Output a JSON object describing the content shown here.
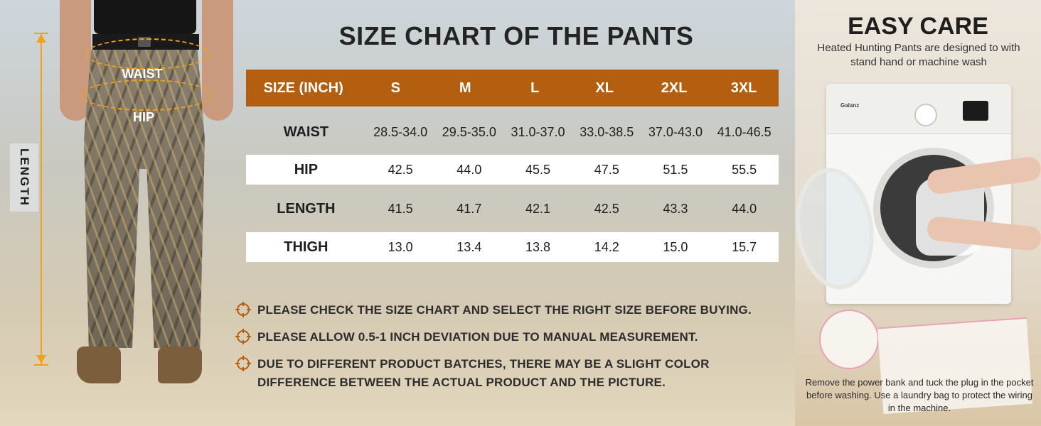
{
  "model": {
    "waist_label": "WAIST",
    "hip_label": "HIP",
    "length_label": "LENGTH"
  },
  "chart_title": "SIZE CHART OF THE PANTS",
  "table": {
    "header": [
      "SIZE (INCH)",
      "S",
      "M",
      "L",
      "XL",
      "2XL",
      "3XL"
    ],
    "rows": [
      {
        "label": "WAIST",
        "values": [
          "28.5-34.0",
          "29.5-35.0",
          "31.0-37.0",
          "33.0-38.5",
          "37.0-43.0",
          "41.0-46.5"
        ]
      },
      {
        "label": "HIP",
        "values": [
          "42.5",
          "44.0",
          "45.5",
          "47.5",
          "51.5",
          "55.5"
        ]
      },
      {
        "label": "LENGTH",
        "values": [
          "41.5",
          "41.7",
          "42.1",
          "42.5",
          "43.3",
          "44.0"
        ]
      },
      {
        "label": "THIGH",
        "values": [
          "13.0",
          "13.4",
          "13.8",
          "14.2",
          "15.0",
          "15.7"
        ]
      }
    ]
  },
  "notes": [
    "PLEASE CHECK THE SIZE CHART AND SELECT THE RIGHT SIZE BEFORE BUYING.",
    "PLEASE ALLOW 0.5-1 INCH DEVIATION DUE TO MANUAL MEASUREMENT.",
    "DUE TO DIFFERENT PRODUCT BATCHES, THERE MAY BE A SLIGHT COLOR DIFFERENCE BETWEEN THE ACTUAL PRODUCT AND THE PICTURE."
  ],
  "care": {
    "title": "EASY CARE",
    "subtitle": "Heated Hunting Pants are designed to with stand hand or machine wash",
    "washer_brand": "Galanz",
    "footer": "Remove the power bank and tuck the plug in the pocket before washing. Use a laundry bag to protect the wiring in the machine."
  },
  "colors": {
    "accent": "#b45f0f",
    "measure": "#f0a21a"
  },
  "icons": [
    "crosshair-icon"
  ]
}
